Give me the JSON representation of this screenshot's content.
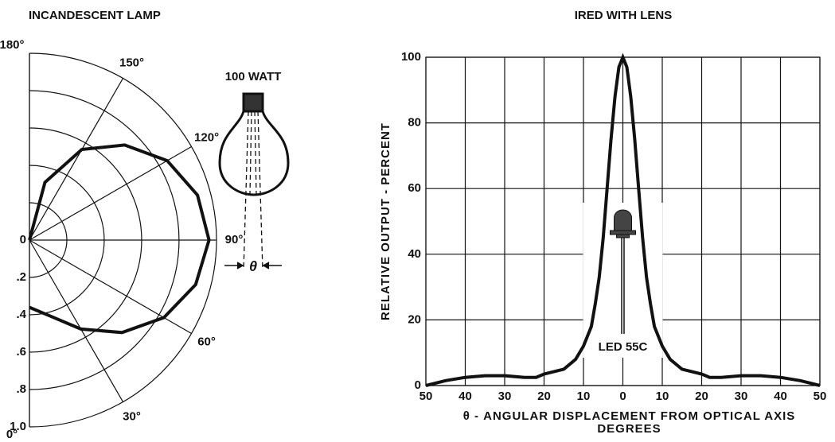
{
  "chart_data": [
    {
      "type": "polar",
      "title": "INCANDESCENT LAMP",
      "annotations": [
        "100 WATT",
        "θ"
      ],
      "theta": [
        0,
        15,
        30,
        45,
        60,
        75,
        90,
        105,
        120,
        135,
        150,
        165,
        180
      ],
      "values": [
        0.36,
        0.42,
        0.55,
        0.7,
        0.83,
        0.92,
        0.96,
        0.93,
        0.85,
        0.72,
        0.56,
        0.32,
        0
      ],
      "rlim": [
        0,
        1
      ],
      "rticks": [
        0,
        {
          "value": 0.2,
          "label": ".2"
        },
        {
          "value": 0.4,
          "label": ".4"
        },
        {
          "value": 0.6,
          "label": ".6"
        },
        {
          "value": 0.8,
          "label": ".8"
        },
        {
          "value": 1,
          "label": "1.0"
        }
      ],
      "thetaticks": [
        {
          "value": 0,
          "label": "0°"
        },
        {
          "value": 30,
          "label": "30°"
        },
        {
          "value": 60,
          "label": "60°"
        },
        {
          "value": 90,
          "label": "90°"
        },
        {
          "value": 120,
          "label": "120°"
        },
        {
          "value": 150,
          "label": "150°"
        },
        {
          "value": 180,
          "label": "180°"
        }
      ],
      "color": "#111111",
      "grid": true
    },
    {
      "type": "line",
      "title": "IRED WITH LENS",
      "ylabel": "RELATIVE OUTPUT - PERCENT",
      "xlabel": [
        "θ - ANGULAR DISPLACEMENT FROM OPTICAL AXIS",
        "DEGREES"
      ],
      "annotation": "LED 55C",
      "x": [
        -50,
        -45,
        -40,
        -35,
        -30,
        -25,
        -22,
        -20,
        -15,
        -12,
        -10,
        -8,
        -7,
        -6,
        -5,
        -4,
        -3,
        -2,
        -1,
        0,
        1,
        2,
        3,
        4,
        5,
        6,
        7,
        8,
        10,
        12,
        15,
        20,
        22,
        25,
        30,
        35,
        40,
        45,
        50
      ],
      "values": [
        0,
        1.5,
        2.5,
        3,
        3,
        2.5,
        2.5,
        3.5,
        5,
        8,
        12,
        18,
        25,
        33,
        45,
        60,
        75,
        88,
        97,
        100,
        97,
        88,
        75,
        60,
        45,
        33,
        25,
        18,
        12,
        8,
        5,
        3.5,
        2.5,
        2.5,
        3,
        3,
        2.5,
        1.5,
        0
      ],
      "xlim": [
        -50,
        50
      ],
      "ylim": [
        0,
        100
      ],
      "xticks": [
        {
          "value": -50,
          "label": "50"
        },
        {
          "value": -40,
          "label": "40"
        },
        {
          "value": -30,
          "label": "30"
        },
        {
          "value": -20,
          "label": "20"
        },
        {
          "value": -10,
          "label": "10"
        },
        0,
        10,
        20,
        30,
        40,
        50
      ],
      "yticks": [
        0,
        20,
        40,
        60,
        80,
        100
      ],
      "color": "#111111",
      "grid": true
    }
  ]
}
